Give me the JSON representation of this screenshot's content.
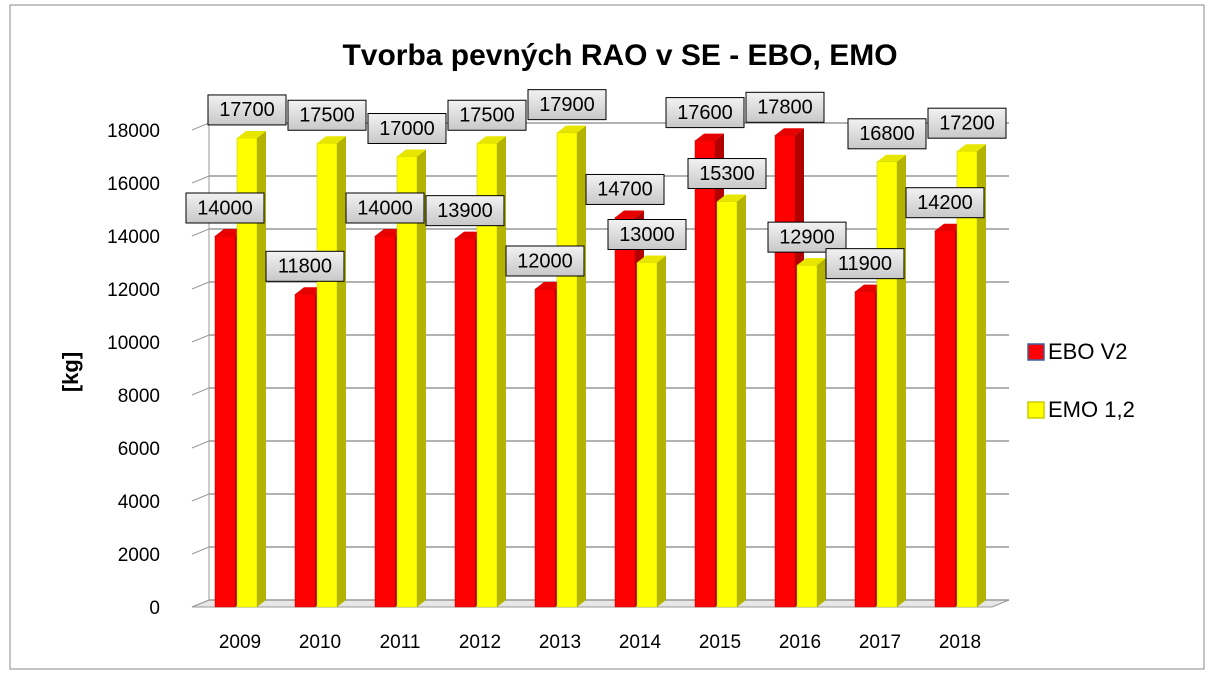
{
  "chart_data": {
    "type": "bar",
    "title": "Tvorba pevných RAO v SE - EBO, EMO",
    "ylabel": "[kg]",
    "categories": [
      "2009",
      "2010",
      "2011",
      "2012",
      "2013",
      "2014",
      "2015",
      "2016",
      "2017",
      "2018"
    ],
    "series": [
      {
        "name": "EBO V2",
        "color": "#ff0000",
        "values": [
          14000,
          11800,
          14000,
          13900,
          12000,
          14700,
          17600,
          17800,
          11900,
          14200
        ]
      },
      {
        "name": "EMO 1,2",
        "color": "#ffff00",
        "values": [
          17700,
          17500,
          17000,
          17500,
          17900,
          13000,
          15300,
          12900,
          16800,
          17200
        ]
      }
    ],
    "ylim": [
      0,
      18000
    ],
    "yticks": [
      0,
      2000,
      4000,
      6000,
      8000,
      10000,
      12000,
      14000,
      16000,
      18000
    ],
    "grid": true,
    "legend": "right"
  }
}
